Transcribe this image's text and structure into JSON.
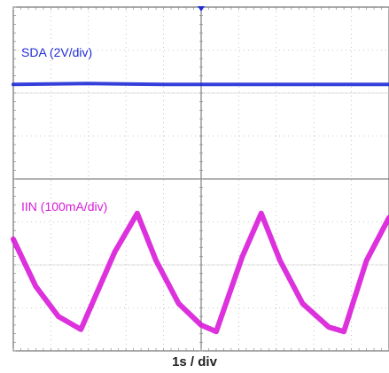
{
  "chart_data": {
    "type": "line",
    "xlabel": "1s / div",
    "x_units": "div",
    "xlim": [
      0,
      10
    ],
    "grid": true,
    "trigger_marker": "top-center",
    "channels": [
      {
        "name": "SDA (2V/div)",
        "color": "#1f2bd6",
        "ylim": [
          -2,
          2
        ],
        "points": [
          [
            0,
            0.2
          ],
          [
            2,
            0.22
          ],
          [
            4,
            0.2
          ],
          [
            6,
            0.2
          ],
          [
            8,
            0.2
          ],
          [
            10,
            0.2
          ]
        ]
      },
      {
        "name": "IIN (100mA/div)",
        "color": "#d81bd8",
        "ylim": [
          -2,
          2
        ],
        "points": [
          [
            0,
            0.6
          ],
          [
            0.6,
            -0.5
          ],
          [
            1.2,
            -1.2
          ],
          [
            1.8,
            -1.5
          ],
          [
            2.7,
            0.3
          ],
          [
            3.3,
            1.2
          ],
          [
            3.8,
            0.1
          ],
          [
            4.4,
            -0.9
          ],
          [
            5.0,
            -1.4
          ],
          [
            5.4,
            -1.55
          ],
          [
            6.1,
            0.2
          ],
          [
            6.6,
            1.2
          ],
          [
            7.1,
            0.1
          ],
          [
            7.7,
            -0.9
          ],
          [
            8.4,
            -1.45
          ],
          [
            8.8,
            -1.55
          ],
          [
            9.4,
            0.1
          ],
          [
            10,
            1.1
          ]
        ]
      }
    ]
  }
}
